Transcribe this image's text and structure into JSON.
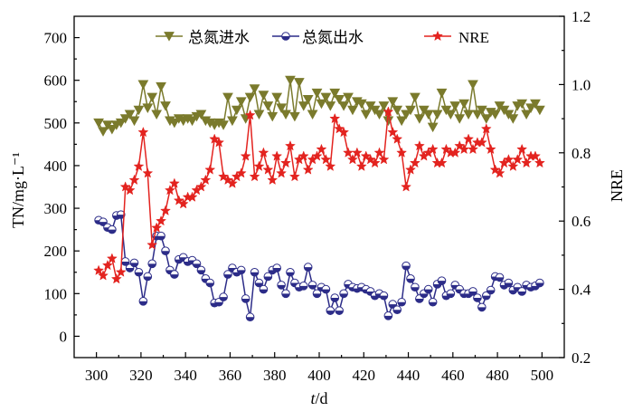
{
  "chart_data": {
    "type": "line",
    "xlabel": "t/d",
    "ylabel": "TN/mg·L⁻¹",
    "y2label": "NRE",
    "xlim": [
      290,
      510
    ],
    "ylim": [
      -50,
      750
    ],
    "y2lim": [
      0.2,
      1.2
    ],
    "x_ticks": [
      300,
      320,
      340,
      360,
      380,
      400,
      420,
      440,
      460,
      480,
      500
    ],
    "y_ticks": [
      0,
      100,
      200,
      300,
      400,
      500,
      600,
      700
    ],
    "y2_ticks": [
      "0.2",
      "0.4",
      "0.6",
      "0.8",
      "1.0",
      "1.2"
    ],
    "grid": false,
    "legend_position": "top",
    "x": [
      301,
      303,
      305,
      307,
      309,
      311,
      313,
      315,
      317,
      319,
      321,
      323,
      325,
      327,
      329,
      331,
      333,
      335,
      337,
      339,
      341,
      343,
      345,
      347,
      349,
      351,
      353,
      355,
      357,
      359,
      361,
      363,
      365,
      367,
      369,
      371,
      373,
      375,
      377,
      379,
      381,
      383,
      385,
      387,
      389,
      391,
      393,
      395,
      397,
      399,
      401,
      403,
      405,
      407,
      409,
      411,
      413,
      415,
      417,
      419,
      421,
      423,
      425,
      427,
      429,
      431,
      433,
      435,
      437,
      439,
      441,
      443,
      445,
      447,
      449,
      451,
      453,
      455,
      457,
      459,
      461,
      463,
      465,
      467,
      469,
      471,
      473,
      475,
      477,
      479,
      481,
      483,
      485,
      487,
      489,
      491,
      493,
      495,
      497,
      499
    ],
    "series": [
      {
        "name": "总氮进水",
        "axis": "left",
        "color": "#7a7a2c",
        "marker": "triangle-down",
        "values": [
          500,
          480,
          495,
          485,
          495,
          500,
          510,
          520,
          505,
          530,
          590,
          535,
          560,
          520,
          585,
          540,
          505,
          500,
          510,
          505,
          510,
          505,
          515,
          520,
          505,
          500,
          495,
          500,
          495,
          560,
          505,
          530,
          550,
          510,
          560,
          580,
          520,
          565,
          540,
          515,
          560,
          535,
          520,
          600,
          515,
          595,
          540,
          555,
          520,
          570,
          545,
          560,
          540,
          570,
          555,
          540,
          560,
          530,
          550,
          545,
          520,
          540,
          530,
          520,
          540,
          505,
          550,
          530,
          505,
          520,
          530,
          560,
          510,
          530,
          520,
          490,
          520,
          570,
          530,
          520,
          540,
          510,
          545,
          520,
          590,
          520,
          530,
          510,
          525,
          520,
          540,
          530,
          520,
          510,
          540,
          545,
          520,
          535,
          545,
          530
        ]
      },
      {
        "name": "总氮出水",
        "axis": "left",
        "color": "#2c2c88",
        "marker": "half-filled-circle",
        "values": [
          272,
          268,
          255,
          250,
          283,
          285,
          175,
          160,
          172,
          150,
          82,
          140,
          170,
          235,
          235,
          200,
          155,
          145,
          180,
          185,
          175,
          178,
          170,
          155,
          135,
          125,
          78,
          80,
          92,
          145,
          160,
          150,
          155,
          88,
          45,
          150,
          125,
          110,
          140,
          155,
          160,
          120,
          100,
          150,
          125,
          115,
          118,
          162,
          120,
          100,
          115,
          110,
          60,
          90,
          60,
          100,
          122,
          115,
          112,
          115,
          110,
          105,
          95,
          100,
          95,
          48,
          75,
          62,
          80,
          165,
          135,
          115,
          88,
          100,
          110,
          80,
          122,
          130,
          95,
          100,
          120,
          110,
          100,
          100,
          105,
          90,
          68,
          95,
          108,
          140,
          138,
          120,
          125,
          108,
          115,
          105,
          120,
          115,
          118,
          125
        ]
      },
      {
        "name": "NRE",
        "axis": "right",
        "color": "#e3231f",
        "marker": "star",
        "values": [
          0.455,
          0.44,
          0.47,
          0.49,
          0.43,
          0.45,
          0.7,
          0.69,
          0.72,
          0.76,
          0.86,
          0.74,
          0.53,
          0.58,
          0.6,
          0.63,
          0.69,
          0.71,
          0.66,
          0.65,
          0.67,
          0.67,
          0.69,
          0.7,
          0.72,
          0.75,
          0.84,
          0.83,
          0.73,
          0.72,
          0.71,
          0.73,
          0.74,
          0.79,
          0.91,
          0.73,
          0.76,
          0.8,
          0.75,
          0.72,
          0.79,
          0.74,
          0.77,
          0.82,
          0.73,
          0.78,
          0.79,
          0.75,
          0.78,
          0.79,
          0.81,
          0.78,
          0.76,
          0.9,
          0.87,
          0.86,
          0.8,
          0.78,
          0.8,
          0.76,
          0.79,
          0.78,
          0.77,
          0.8,
          0.78,
          0.92,
          0.86,
          0.84,
          0.8,
          0.7,
          0.75,
          0.77,
          0.82,
          0.79,
          0.8,
          0.81,
          0.77,
          0.77,
          0.81,
          0.8,
          0.8,
          0.82,
          0.81,
          0.84,
          0.81,
          0.83,
          0.83,
          0.87,
          0.81,
          0.75,
          0.74,
          0.77,
          0.78,
          0.76,
          0.78,
          0.81,
          0.77,
          0.79,
          0.79,
          0.77
        ]
      }
    ]
  }
}
